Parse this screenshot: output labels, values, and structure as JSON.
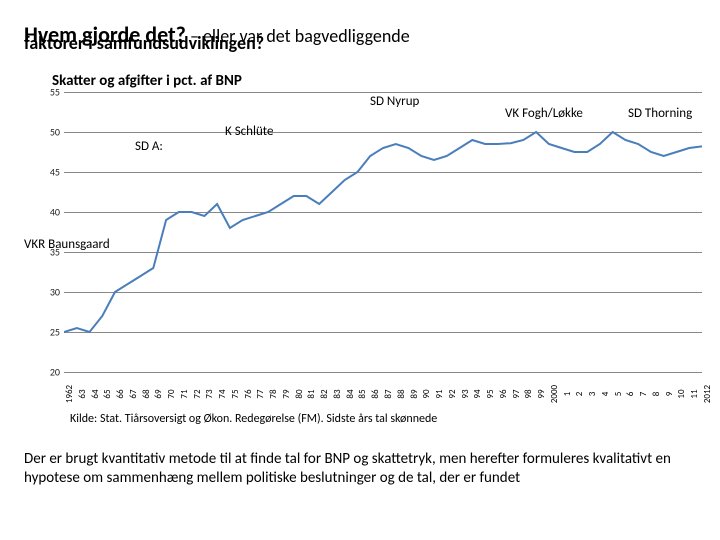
{
  "title_strong": "Hvem gjorde det?",
  "title_rest": " – eller var det bagvedliggende",
  "subtitle": "faktorer i samfundsudviklingen?",
  "chart_title": "Skatter og afgifter i pct. af BNP",
  "chart": {
    "type": "line",
    "ylim": [
      20,
      55
    ],
    "ytick_step": 5,
    "yticks": [
      20,
      25,
      30,
      35,
      40,
      45,
      50,
      55
    ],
    "line_color": "#4a7ebb",
    "line_width": 2,
    "grid_color": "#888888",
    "background": "#ffffff",
    "x_labels": [
      "1962",
      "63",
      "64",
      "65",
      "66",
      "67",
      "68",
      "69",
      "70",
      "71",
      "72",
      "73",
      "74",
      "75",
      "76",
      "77",
      "78",
      "79",
      "80",
      "81",
      "82",
      "83",
      "84",
      "85",
      "86",
      "87",
      "88",
      "89",
      "90",
      "91",
      "92",
      "93",
      "94",
      "95",
      "96",
      "97",
      "98",
      "99",
      "2000",
      "1",
      "2",
      "3",
      "4",
      "5",
      "6",
      "7",
      "8",
      "9",
      "10",
      "11",
      "2012"
    ],
    "values": [
      25,
      25.5,
      25,
      27,
      30,
      31,
      32,
      33,
      39,
      40,
      40,
      39.5,
      41,
      38,
      39,
      39.5,
      40,
      41,
      42,
      42,
      41,
      42.5,
      44,
      45,
      47,
      48,
      48.5,
      48,
      47,
      46.5,
      47,
      48,
      49,
      48.5,
      48.5,
      48.6,
      49,
      50,
      48.5,
      48,
      47.5,
      47.5,
      48.5,
      50,
      49,
      48.5,
      47.5,
      47,
      47.5,
      48,
      48.2
    ],
    "label_fontsize": 10
  },
  "annotations": {
    "vkr": "VKR Baunsgaard",
    "sd_a": "SD A:",
    "k_sch": "K Schlüte",
    "sd_nyrup": "SD  Nyrup",
    "vk_fogh": "VK Fogh/Løkke",
    "sd_thorning": "SD Thorning"
  },
  "source": "Kilde: Stat. Tiårsoversigt og Økon. Redegørelse (FM). Sidste års tal skønnede",
  "body": "Der er brugt kvantitativ metode til at finde tal for BNP og skattetryk, men herefter formuleres kvalitativt en hypotese om sammenhæng mellem politiske beslutninger og de tal, der er fundet"
}
